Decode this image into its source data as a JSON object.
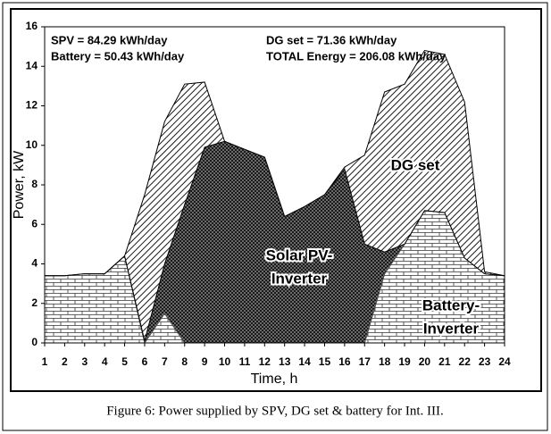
{
  "chart_data": {
    "type": "stacked-area",
    "caption": "Figure 6: Power supplied by SPV, DG set & battery for Int. III.",
    "xlabel": "Time, h",
    "ylabel": "Power, kW",
    "x": [
      1,
      2,
      3,
      4,
      5,
      6,
      7,
      8,
      9,
      10,
      11,
      12,
      13,
      14,
      15,
      16,
      17,
      18,
      19,
      20,
      21,
      22,
      23,
      24
    ],
    "xlim": [
      1,
      24
    ],
    "xticks": [
      1,
      2,
      3,
      4,
      5,
      6,
      7,
      8,
      9,
      10,
      11,
      12,
      13,
      14,
      15,
      16,
      17,
      18,
      19,
      20,
      21,
      22,
      23,
      24
    ],
    "ylim": [
      0,
      16
    ],
    "yticks": [
      0,
      2,
      4,
      6,
      8,
      10,
      12,
      14,
      16
    ],
    "annotations": [
      "SPV = 84.29 kWh/day",
      "DG set = 71.36 kWh/day",
      "Battery = 50.43 kWh/day",
      "TOTAL Energy = 206.08 kWh/day"
    ],
    "series": [
      {
        "label_lines": [
          "Battery-",
          "Inverter"
        ],
        "color": "#ffffff",
        "values": [
          3.4,
          3.4,
          3.5,
          3.5,
          4.4,
          0,
          1.5,
          0,
          0,
          0,
          0,
          0,
          0,
          0,
          0,
          0,
          0,
          3.5,
          5,
          6.7,
          6.6,
          4.3,
          3.5,
          3.4
        ]
      },
      {
        "label_lines": [
          "Solar PV-",
          "Inverter"
        ],
        "color": "#555555",
        "values": [
          0,
          0,
          0,
          0,
          0,
          0.1,
          2.5,
          7,
          9.9,
          10.2,
          9.8,
          9.4,
          6.4,
          6.9,
          7.5,
          8.8,
          5,
          1.1,
          0,
          0,
          0,
          0,
          0,
          0
        ]
      },
      {
        "label_lines": [
          "DG set"
        ],
        "color": "#000000",
        "values": [
          0,
          0,
          0,
          0,
          0,
          7.4,
          7.2,
          6.1,
          3.3,
          0,
          0,
          0,
          0,
          0,
          0,
          0.1,
          4.5,
          8.1,
          8.1,
          8.1,
          8,
          7.9,
          0.1,
          0
        ]
      }
    ]
  }
}
